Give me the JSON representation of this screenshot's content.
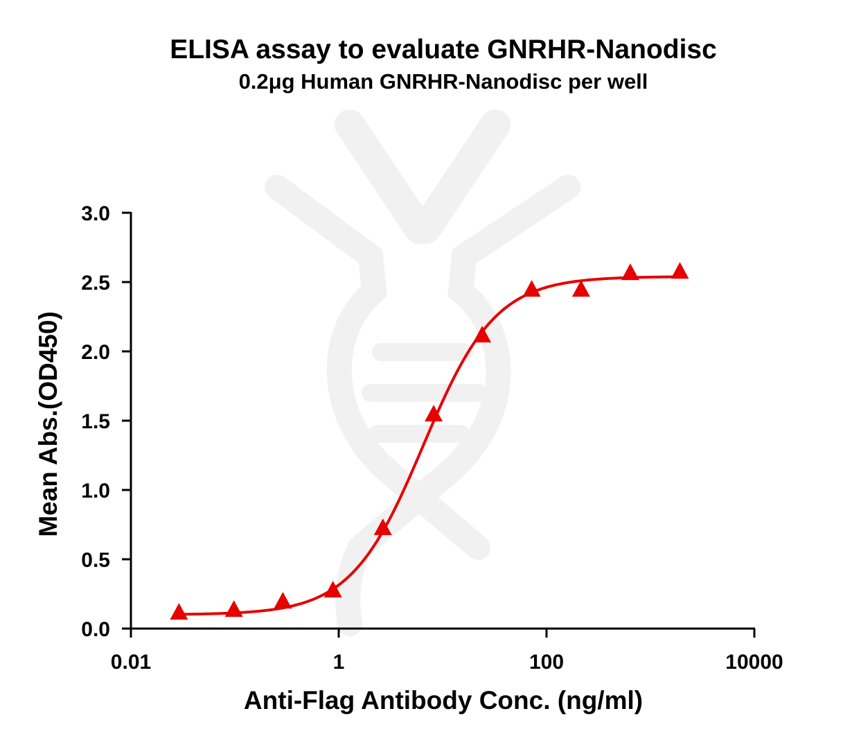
{
  "chart_data": {
    "type": "scatter",
    "title": "ELISA assay to evaluate GNRHR-Nanodisc",
    "subtitle": "0.2μg Human GNRHR-Nanodisc per well",
    "xlabel": "Anti-Flag Antibody Conc. (ng/ml)",
    "ylabel": "Mean Abs.(OD450)",
    "x_scale": "log",
    "xlim": [
      0.01,
      10000
    ],
    "ylim": [
      0,
      3.0
    ],
    "x_ticks": [
      0.01,
      1,
      100,
      10000
    ],
    "x_tick_labels": [
      "0.01",
      "1",
      "100",
      "10000"
    ],
    "y_ticks": [
      0.0,
      0.5,
      1.0,
      1.5,
      2.0,
      2.5,
      3.0
    ],
    "y_tick_labels": [
      "0.0",
      "0.5",
      "1.0",
      "1.5",
      "2.0",
      "2.5",
      "3.0"
    ],
    "grid": false,
    "series": [
      {
        "marker": "triangle",
        "color": "#e60000",
        "x": [
          0.029,
          0.098,
          0.29,
          0.88,
          2.66,
          8.2,
          24,
          72,
          215,
          640,
          1920
        ],
        "y": [
          0.11,
          0.13,
          0.19,
          0.27,
          0.72,
          1.54,
          2.11,
          2.44,
          2.44,
          2.56,
          2.57
        ]
      }
    ],
    "fit_curve": {
      "model": "4PL",
      "color": "#e60000",
      "bottom": 0.1,
      "top": 2.54,
      "ec50": 6.5,
      "hill": 1.25
    }
  }
}
